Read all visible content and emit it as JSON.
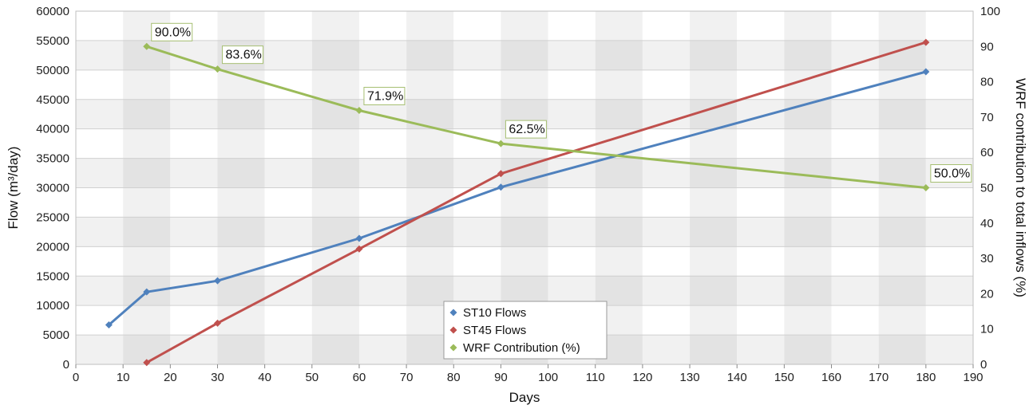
{
  "chart_data": {
    "type": "line",
    "xlabel": "Days",
    "ylabel": "Flow (m³/day)",
    "y2label": "WRF contribution to total inflows (%)",
    "xlim": [
      0,
      190
    ],
    "ylim": [
      0,
      60000
    ],
    "y2lim": [
      0,
      100
    ],
    "x_ticks": [
      0,
      10,
      20,
      30,
      40,
      50,
      60,
      70,
      80,
      90,
      100,
      110,
      120,
      130,
      140,
      150,
      160,
      170,
      180,
      190
    ],
    "y_ticks": [
      0,
      5000,
      10000,
      15000,
      20000,
      25000,
      30000,
      35000,
      40000,
      45000,
      50000,
      55000,
      60000
    ],
    "y2_ticks": [
      0,
      10,
      20,
      30,
      40,
      50,
      60,
      70,
      80,
      90,
      100
    ],
    "grid": true,
    "legend_position": "bottom-center",
    "series": [
      {
        "name": "ST10 Flows",
        "axis": "left",
        "color": "#4f81bd",
        "x": [
          7,
          15,
          30,
          60,
          90,
          180
        ],
        "y": [
          6700,
          12300,
          14200,
          21400,
          30100,
          49700
        ]
      },
      {
        "name": "ST45 Flows",
        "axis": "left",
        "color": "#c0504d",
        "x": [
          15,
          30,
          60,
          90,
          180
        ],
        "y": [
          300,
          7000,
          19600,
          32400,
          54700
        ]
      },
      {
        "name": "WRF Contribution (%)",
        "axis": "right",
        "color": "#9bbb59",
        "x": [
          15,
          30,
          60,
          90,
          180
        ],
        "y": [
          90.0,
          83.6,
          71.9,
          62.5,
          50.0
        ],
        "labels": [
          "90.0%",
          "83.6%",
          "71.9%",
          "62.5%",
          "50.0%"
        ]
      }
    ]
  }
}
